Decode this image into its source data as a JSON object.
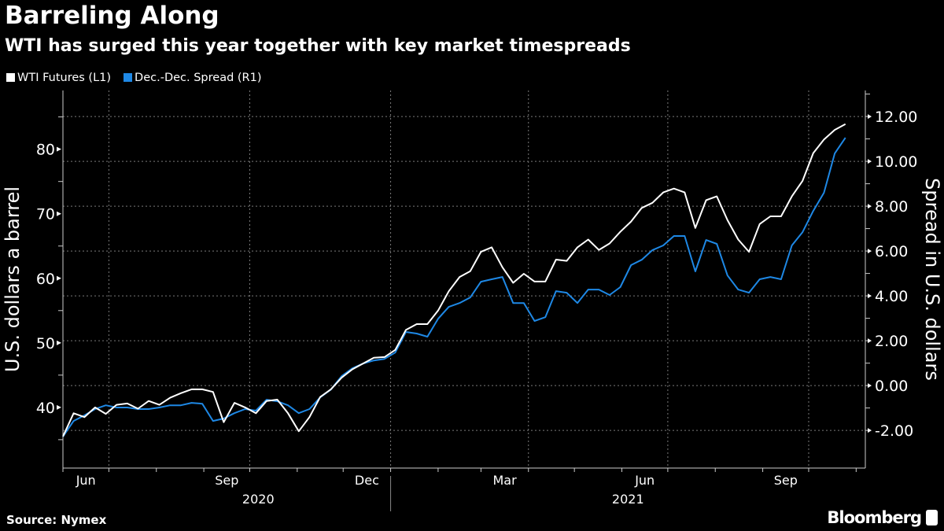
{
  "header": {
    "title": "Barreling Along",
    "subtitle": "WTI has surged this year together with key market timespreads"
  },
  "footer": {
    "source": "Source: Nymex",
    "logo": "Bloomberg"
  },
  "colors": {
    "background": "#000000",
    "wti": "#ffffff",
    "spread": "#1e88e5",
    "grid": "#808080"
  },
  "chart_data": {
    "type": "line",
    "title": "Barreling Along",
    "subtitle": "WTI has surged this year together with key market timespreads",
    "ylabel_left": "U.S. dollars a barrel",
    "ylabel_right": "Spread in U.S. dollars",
    "xlim": [
      "2020-06-01",
      "2021-11-07"
    ],
    "ylim_left": [
      30.6,
      89.1
    ],
    "ylim_right": [
      -3.68,
      13.16
    ],
    "left_ticks": [
      "40",
      "50",
      "60",
      "70",
      "80"
    ],
    "right_ticks": [
      "-2.00",
      "0.00",
      "2.00",
      "4.00",
      "6.00",
      "8.00",
      "10.00",
      "12.00"
    ],
    "x_month_labels": [
      {
        "label": "Jun",
        "month": "2020-06"
      },
      {
        "label": "Sep",
        "month": "2020-09"
      },
      {
        "label": "Dec",
        "month": "2020-12"
      },
      {
        "label": "Mar",
        "month": "2021-03"
      },
      {
        "label": "Jun",
        "month": "2021-06"
      },
      {
        "label": "Sep",
        "month": "2021-09"
      }
    ],
    "x_year_labels": [
      {
        "label": "2020",
        "year": 2020
      },
      {
        "label": "2021",
        "year": 2021
      }
    ],
    "grid": true,
    "legend_position": "top-left",
    "dates_start": "2020-06-01",
    "dates_step_days": 7,
    "series": [
      {
        "name": "WTI Futures (L1)",
        "axis": "left",
        "color": "#ffffff",
        "values": [
          35.5,
          39.1,
          38.5,
          40.0,
          39.0,
          40.4,
          40.6,
          39.8,
          41.0,
          40.4,
          41.5,
          42.2,
          42.8,
          42.8,
          42.4,
          37.7,
          40.7,
          40.0,
          39.1,
          41.0,
          41.2,
          39.1,
          36.3,
          38.5,
          41.6,
          42.8,
          44.6,
          45.9,
          46.8,
          47.7,
          47.8,
          48.9,
          52.0,
          52.9,
          52.9,
          55.0,
          58.0,
          60.2,
          61.1,
          64.1,
          64.8,
          61.7,
          59.3,
          60.7,
          59.5,
          59.5,
          62.9,
          62.7,
          64.8,
          66.0,
          64.4,
          65.4,
          67.2,
          68.8,
          70.9,
          71.7,
          73.3,
          73.9,
          73.3,
          67.8,
          72.1,
          72.7,
          69.0,
          66.0,
          64.1,
          68.4,
          69.6,
          69.6,
          72.7,
          75.1,
          79.4,
          81.5,
          83.0,
          83.9
        ]
      },
      {
        "name": "Dec.-Dec. Spread (R1)",
        "axis": "right",
        "color": "#1e88e5",
        "values": [
          -2.28,
          -1.58,
          -1.33,
          -1.05,
          -0.88,
          -0.98,
          -0.98,
          -1.05,
          -1.05,
          -0.98,
          -0.88,
          -0.88,
          -0.77,
          -0.81,
          -1.58,
          -1.47,
          -1.23,
          -1.05,
          -1.12,
          -0.63,
          -0.7,
          -0.88,
          -1.23,
          -1.05,
          -0.53,
          -0.18,
          0.42,
          0.77,
          0.98,
          1.12,
          1.19,
          1.47,
          2.39,
          2.32,
          2.18,
          2.98,
          3.51,
          3.68,
          3.93,
          4.63,
          4.74,
          4.84,
          3.68,
          3.68,
          2.88,
          3.05,
          4.21,
          4.14,
          3.68,
          4.28,
          4.28,
          4.04,
          4.39,
          5.37,
          5.61,
          6.04,
          6.25,
          6.67,
          6.67,
          5.09,
          6.49,
          6.32,
          4.91,
          4.28,
          4.14,
          4.74,
          4.84,
          4.74,
          6.25,
          6.84,
          7.79,
          8.6,
          10.35,
          11.05
        ]
      }
    ]
  }
}
